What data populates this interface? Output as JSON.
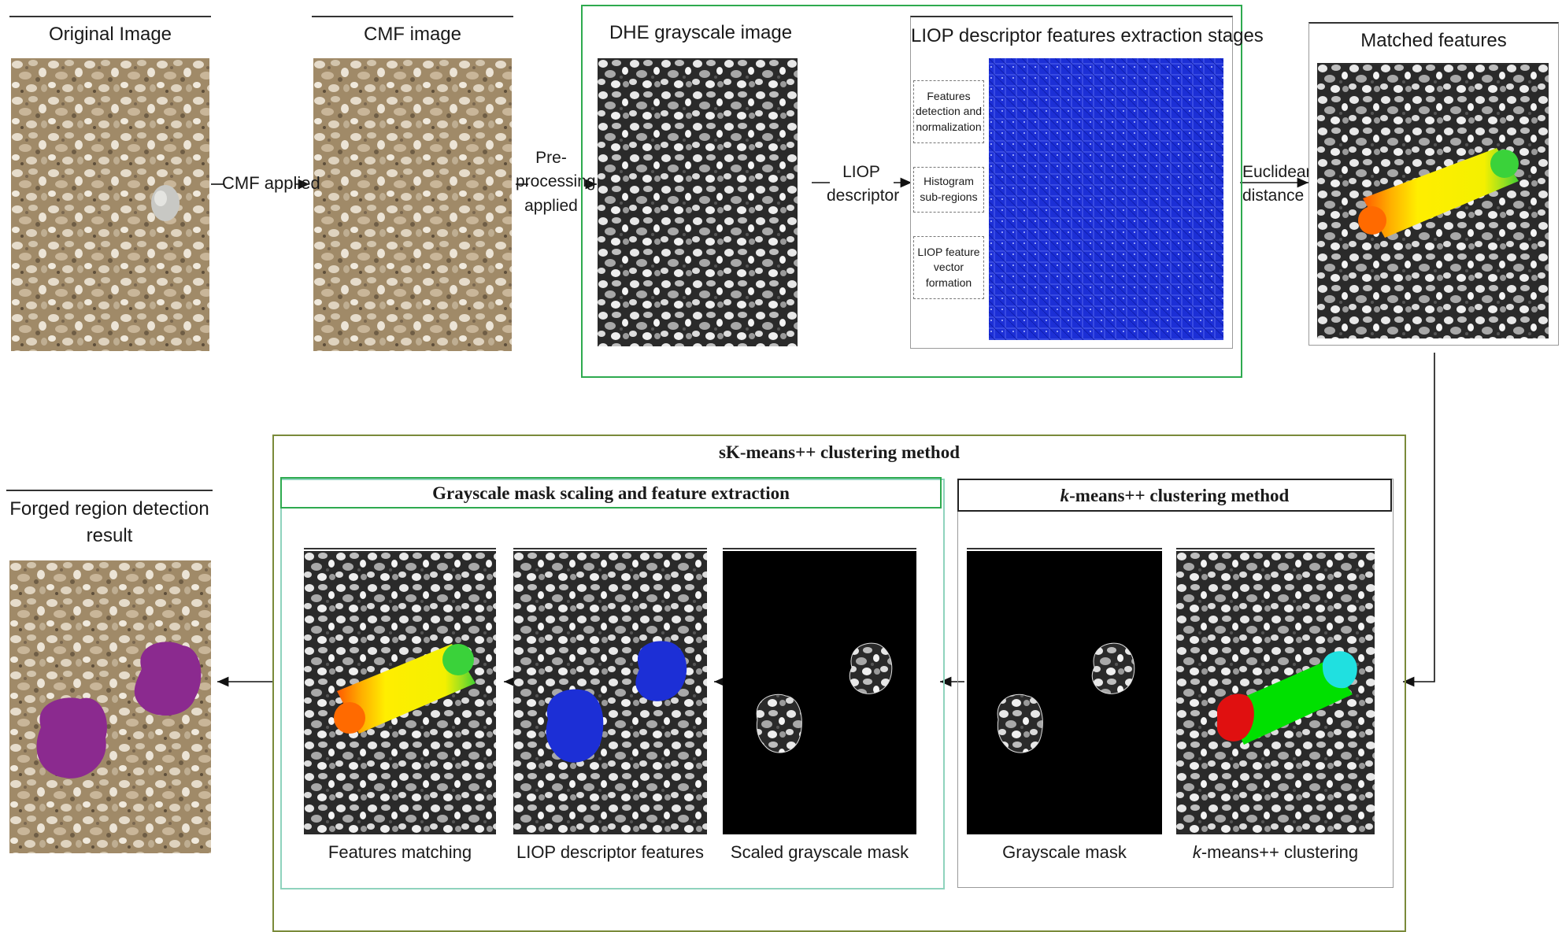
{
  "top": {
    "original_title": "Original Image",
    "cmf_title": "CMF image",
    "dhe_title": "DHE grayscale image",
    "liop_stages_title": "LIOP descriptor features extraction stages",
    "matched_title": "Matched features",
    "arrow_cmf": "CMF applied",
    "arrow_pre_1": "Pre-",
    "arrow_pre_2": "processing",
    "arrow_pre_3": "applied",
    "arrow_liop_1": "LIOP",
    "arrow_liop_2": "descriptor",
    "arrow_euc_1": "Euclidean",
    "arrow_euc_2": "distance",
    "stage1_1": "Features",
    "stage1_2": "detection and",
    "stage1_3": "normalization",
    "stage2_1": "Histogram",
    "stage2_2": "sub-regions",
    "stage3_1": "LIOP feature",
    "stage3_2": "vector",
    "stage3_3": "formation"
  },
  "bottom": {
    "outer_title": "sK-means++ clustering method",
    "left_group_title": "Grayscale mask scaling and feature extraction",
    "right_group_title_italic": "k",
    "right_group_title_rest": "-means++ clustering method",
    "result_title_1": "Forged region detection",
    "result_title_2": "result",
    "cap_features_matching": "Features matching",
    "cap_liop_features": "LIOP descriptor features",
    "cap_scaled_mask": "Scaled grayscale mask",
    "cap_grayscale_mask": "Grayscale mask",
    "cap_kmeans_italic": "k",
    "cap_kmeans_rest": "-means++ clustering"
  },
  "colors": {
    "green_frame": "#2eaa4f",
    "olive_frame": "#7a8a3a",
    "teal_frame": "#8fd3bd",
    "liop_blue": "#1c2fd6",
    "forged_purple": "#8b2a8f",
    "match_yellow": "#ffee00",
    "cluster_green": "#00e000",
    "cluster_red": "#e01010",
    "cluster_cyan": "#20e0e0"
  }
}
